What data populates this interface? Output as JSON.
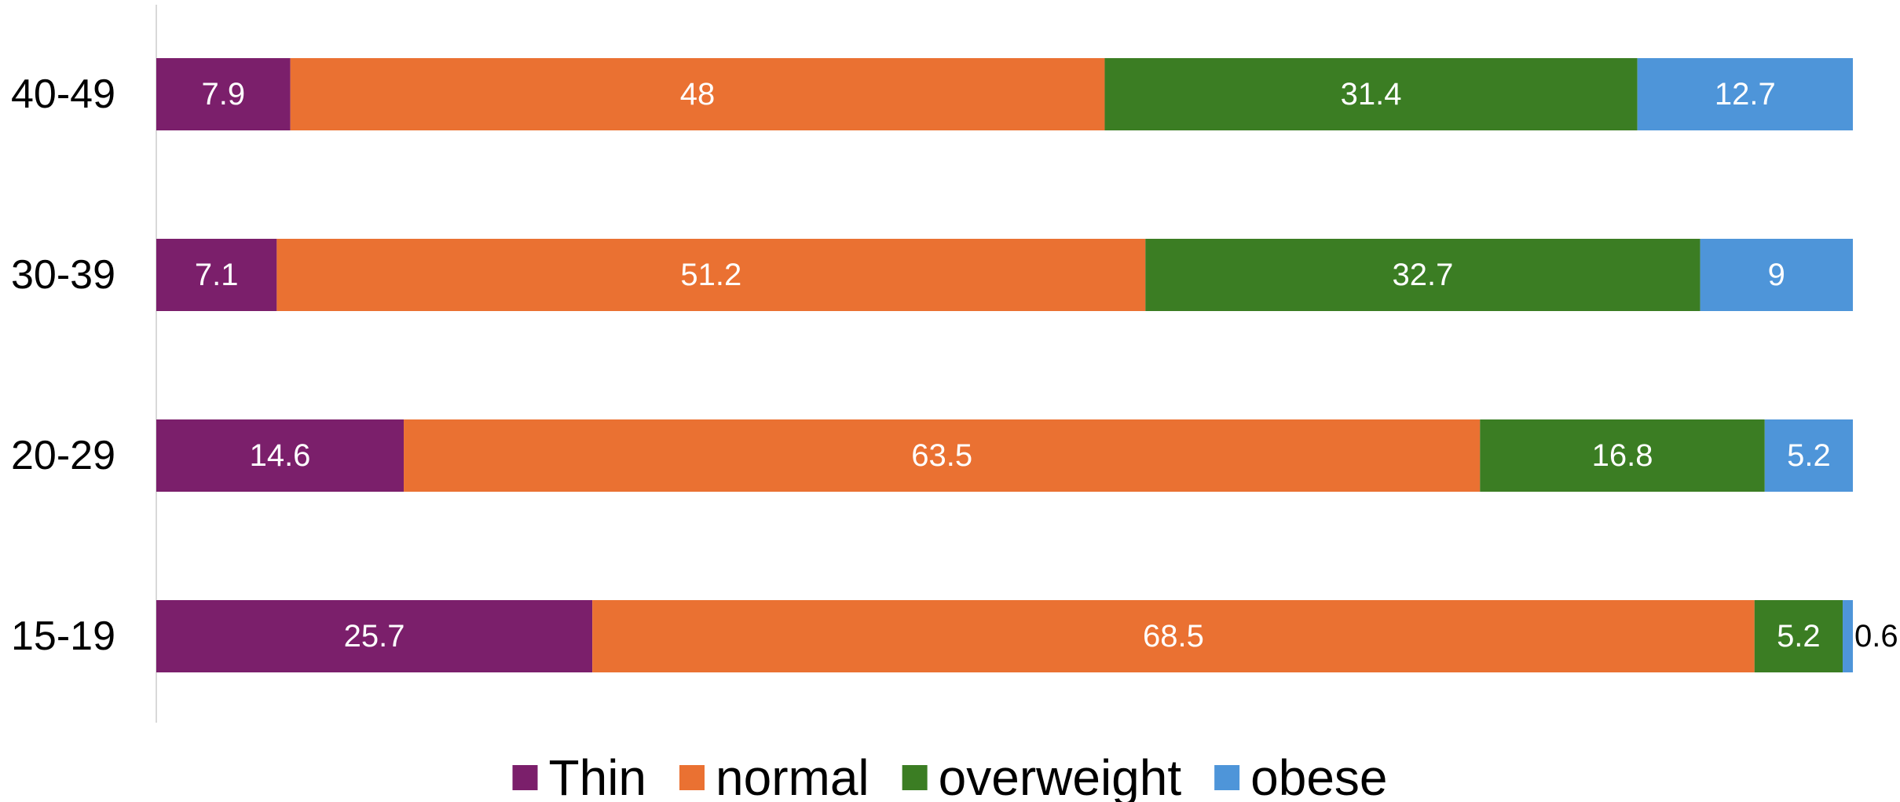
{
  "chart_data": {
    "type": "bar",
    "orientation": "horizontal",
    "stacked": true,
    "title": "",
    "xlabel": "",
    "ylabel": "",
    "xlim": [
      0,
      100
    ],
    "grid": false,
    "legend_position": "bottom",
    "categories": [
      "40-49",
      "30-39",
      "20-29",
      "15-19"
    ],
    "series": [
      {
        "name": "Thin",
        "color": "#7b1f6b",
        "values": [
          7.9,
          7.1,
          14.6,
          25.7
        ],
        "labels": [
          "7.9",
          "7.1",
          "14.6",
          "25.7"
        ]
      },
      {
        "name": "normal",
        "color": "#ea7132",
        "values": [
          48,
          51.2,
          63.5,
          68.5
        ],
        "labels": [
          "48",
          "51.2",
          "63.5",
          "68.5"
        ]
      },
      {
        "name": "overweight",
        "color": "#3b7d23",
        "values": [
          31.4,
          32.7,
          16.8,
          5.2
        ],
        "labels": [
          "31.4",
          "32.7",
          "16.8",
          "5.2"
        ]
      },
      {
        "name": "obese",
        "color": "#4e95d9",
        "values": [
          12.7,
          9,
          5.2,
          0.6
        ],
        "labels": [
          "12.7",
          "9",
          "5.2",
          "0.6"
        ]
      }
    ]
  }
}
